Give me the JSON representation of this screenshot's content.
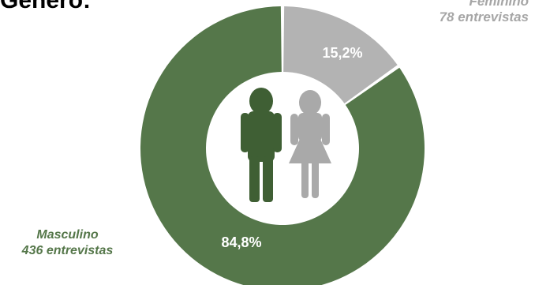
{
  "chart_data": {
    "type": "pie",
    "title": "Gênero:",
    "slices": [
      {
        "label": "Masculino",
        "count_text": "436 entrevistas",
        "value": 84.8,
        "value_text": "84,8%",
        "color": "#55774a"
      },
      {
        "label": "Feminino",
        "count_text": "78 entrevistas",
        "value": 15.2,
        "value_text": "15,2%",
        "color": "#b3b3b3"
      }
    ],
    "center_icons": [
      "man-icon",
      "woman-icon"
    ],
    "colors": {
      "male": "#55774a",
      "female": "#b3b3b3",
      "female_label": "#a6a6a6",
      "icon_male": "#3f5f34",
      "icon_female": "#a9a9a9"
    }
  }
}
